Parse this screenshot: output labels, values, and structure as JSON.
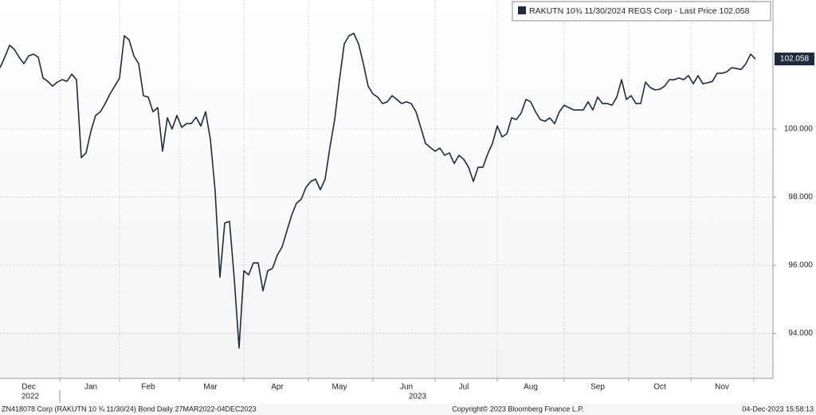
{
  "chart_data": {
    "type": "line",
    "series": [
      {
        "name": "RAKUTN 10¾  11/30/2024 REGS Corp - Last Price 102.058",
        "color": "#1e2b3c",
        "values": [
          101.8,
          102.11,
          102.46,
          102.34,
          102.11,
          101.92,
          102.15,
          102.2,
          102.11,
          101.5,
          101.4,
          101.26,
          101.38,
          101.45,
          101.4,
          101.61,
          101.45,
          99.16,
          99.3,
          99.93,
          100.4,
          100.51,
          100.75,
          101.03,
          101.26,
          101.5,
          102.74,
          102.62,
          102.15,
          101.92,
          100.98,
          100.94,
          100.51,
          100.63,
          99.35,
          100.33,
          100.0,
          100.4,
          100.05,
          100.16,
          100.16,
          100.35,
          100.09,
          100.51,
          99.7,
          98.18,
          95.65,
          97.24,
          97.29,
          95.6,
          93.57,
          95.84,
          95.72,
          96.07,
          96.07,
          95.25,
          95.84,
          95.91,
          96.3,
          96.54,
          97.01,
          97.47,
          97.82,
          97.94,
          98.29,
          98.46,
          98.53,
          98.22,
          98.53,
          99.46,
          100.28,
          101.45,
          102.5,
          102.74,
          102.81,
          102.5,
          101.92,
          101.26,
          101.03,
          100.94,
          100.75,
          100.8,
          100.98,
          100.87,
          100.75,
          100.8,
          100.75,
          100.51,
          100.05,
          99.58,
          99.46,
          99.35,
          99.44,
          99.23,
          99.3,
          98.99,
          99.23,
          99.11,
          98.88,
          98.46,
          98.88,
          98.88,
          99.27,
          99.58,
          100.09,
          99.77,
          99.86,
          100.33,
          100.28,
          100.47,
          100.87,
          100.8,
          100.51,
          100.28,
          100.23,
          100.33,
          100.16,
          100.51,
          100.7,
          100.63,
          100.56,
          100.56,
          100.56,
          100.8,
          100.56,
          100.94,
          100.75,
          100.75,
          100.7,
          100.94,
          101.45,
          100.87,
          100.98,
          100.75,
          100.75,
          101.38,
          101.22,
          101.15,
          101.17,
          101.26,
          101.45,
          101.45,
          101.5,
          101.45,
          101.57,
          101.33,
          101.57,
          101.33,
          101.36,
          101.4,
          101.64,
          101.64,
          101.68,
          101.8,
          101.78,
          101.75,
          101.92,
          102.2,
          102.058
        ]
      }
    ],
    "categories": [
      null,
      null,
      null,
      null,
      null,
      null,
      "Dec",
      null,
      null,
      null,
      null,
      null,
      null,
      null,
      null,
      null,
      null,
      null,
      null,
      "Jan",
      null,
      null,
      null,
      null,
      null,
      null,
      null,
      null,
      null,
      null,
      null,
      "Feb",
      null,
      null,
      null,
      null,
      null,
      null,
      null,
      null,
      null,
      null,
      null,
      null,
      "Mar",
      null,
      null,
      null,
      null,
      null,
      null,
      null,
      null,
      null,
      null,
      null,
      null,
      null,
      "Apr",
      null,
      null,
      null,
      null,
      null,
      null,
      null,
      null,
      null,
      null,
      null,
      null,
      "May",
      null,
      null,
      null,
      null,
      null,
      null,
      null,
      null,
      null,
      null,
      null,
      null,
      null,
      "Jun",
      null,
      null,
      null,
      null,
      null,
      null,
      null,
      null,
      null,
      null,
      null,
      "Jul",
      null,
      null,
      null,
      null,
      null,
      null,
      null,
      null,
      null,
      null,
      null,
      null,
      null,
      "Aug",
      null,
      null,
      null,
      null,
      null,
      null,
      null,
      null,
      null,
      null,
      null,
      null,
      null,
      "Sep",
      null,
      null,
      null,
      null,
      null,
      null,
      null,
      null,
      null,
      null,
      null,
      null,
      "Oct",
      null,
      null,
      null,
      null,
      null,
      null,
      null,
      null,
      null,
      null,
      null,
      null,
      "Nov",
      null,
      null,
      null,
      null,
      null,
      null,
      null
    ],
    "year_labels": [
      "2022",
      "2023"
    ],
    "ylim": [
      92.68,
      103.79
    ],
    "yticks": [
      {
        "value": 94,
        "label": "94.000"
      },
      {
        "value": 96,
        "label": "96.000"
      },
      {
        "value": 98,
        "label": "98.000"
      },
      {
        "value": 100,
        "label": "100.000"
      }
    ],
    "grid": true,
    "legend": "top-right",
    "footer": {
      "left": "ZN418078 Corp (RAKUTN 10 ¾ 11/30/24) Bond  Daily 27MAR2022-04DEC2023",
      "center": "Copyright© 2023 Bloomberg Finance L.P.",
      "right": "04-Dec-2023 15:58:13"
    }
  }
}
